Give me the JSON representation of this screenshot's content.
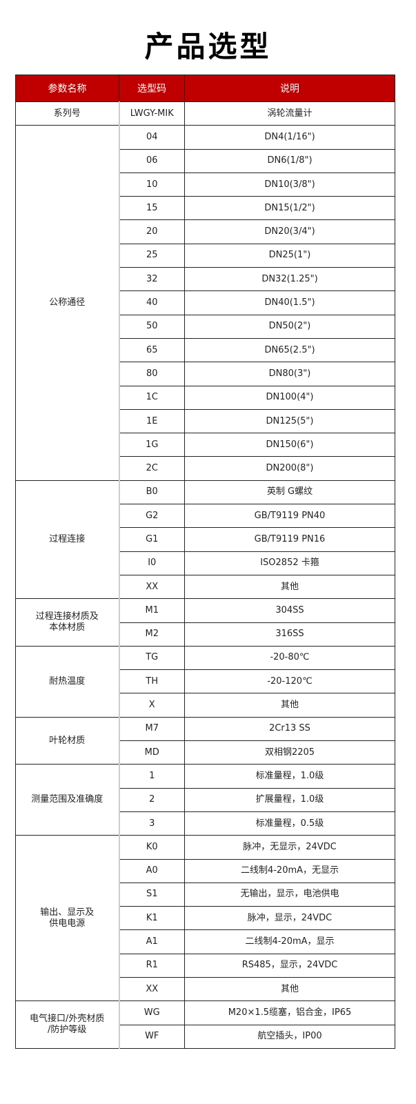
{
  "title": "产品选型",
  "headers": [
    "参数名称",
    "选型码",
    "说明"
  ],
  "groups": [
    {
      "name": "系列号",
      "rows": [
        [
          "LWGY-MIK",
          "涡轮流量计"
        ]
      ]
    },
    {
      "name": "公称通径",
      "rows": [
        [
          "04",
          "DN4(1/16\")"
        ],
        [
          "06",
          "DN6(1/8\")"
        ],
        [
          "10",
          "DN10(3/8\")"
        ],
        [
          "15",
          "DN15(1/2\")"
        ],
        [
          "20",
          "DN20(3/4\")"
        ],
        [
          "25",
          "DN25(1\")"
        ],
        [
          "32",
          "DN32(1.25\")"
        ],
        [
          "40",
          "DN40(1.5\")"
        ],
        [
          "50",
          "DN50(2\")"
        ],
        [
          "65",
          "DN65(2.5\")"
        ],
        [
          "80",
          "DN80(3\")"
        ],
        [
          "1C",
          "DN100(4\")"
        ],
        [
          "1E",
          "DN125(5\")"
        ],
        [
          "1G",
          "DN150(6\")"
        ],
        [
          "2C",
          "DN200(8\")"
        ]
      ]
    },
    {
      "name": "过程连接",
      "rows": [
        [
          "B0",
          "英制 G螺纹"
        ],
        [
          "G2",
          "GB/T9119 PN40"
        ],
        [
          "G1",
          "GB/T9119 PN16"
        ],
        [
          "I0",
          "ISO2852 卡箍"
        ],
        [
          "XX",
          "其他"
        ]
      ]
    },
    {
      "name": "过程连接材质及\n本体材质",
      "rows": [
        [
          "M1",
          "304SS"
        ],
        [
          "M2",
          "316SS"
        ]
      ]
    },
    {
      "name": "耐热温度",
      "rows": [
        [
          "TG",
          "-20-80℃"
        ],
        [
          "TH",
          "-20-120℃"
        ],
        [
          "X",
          "其他"
        ]
      ]
    },
    {
      "name": "叶轮材质",
      "rows": [
        [
          "M7",
          "2Cr13 SS"
        ],
        [
          "MD",
          "双相钢2205"
        ]
      ]
    },
    {
      "name": "测量范围及准确度",
      "rows": [
        [
          "1",
          "标准量程，1.0级"
        ],
        [
          "2",
          "扩展量程，1.0级"
        ],
        [
          "3",
          "标准量程，0.5级"
        ]
      ]
    },
    {
      "name": "输出、显示及\n供电电源",
      "rows": [
        [
          "K0",
          "脉冲，无显示，24VDC"
        ],
        [
          "A0",
          "二线制4-20mA，无显示"
        ],
        [
          "S1",
          "无输出，显示，电池供电"
        ],
        [
          "K1",
          "脉冲，显示，24VDC"
        ],
        [
          "A1",
          "二线制4-20mA，显示"
        ],
        [
          "R1",
          "RS485，显示，24VDC"
        ],
        [
          "XX",
          "其他"
        ]
      ]
    },
    {
      "name": "电气接口/外壳材质\n/防护等级",
      "rows": [
        [
          "WG",
          "M20×1.5缆塞，铝合金，IP65"
        ],
        [
          "WF",
          "航空插头，IP00"
        ]
      ]
    }
  ],
  "colors": {
    "header_bg": "#c00000",
    "header_text": "#ffffff"
  }
}
